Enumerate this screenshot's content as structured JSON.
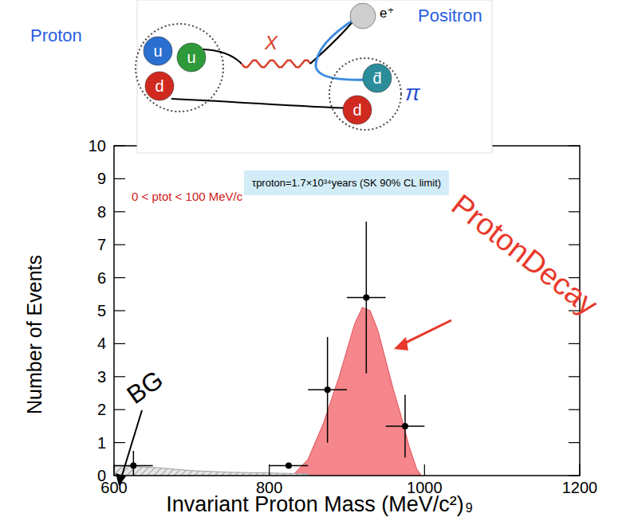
{
  "chart_data": {
    "type": "scatter",
    "x_label": "Invariant Proton Mass (MeV/c²)",
    "page_number": "9",
    "y_label": "Number of Events",
    "annotations": [
      "τproton=1.7×10³⁴years (SK 90% CL limit)",
      "0 < ptot < 100 MeV/c"
    ],
    "xlim": [
      600,
      1200
    ],
    "xticks": [
      600,
      800,
      1000,
      1200
    ],
    "ylim": [
      0,
      10
    ],
    "yticks": [
      0,
      1,
      2,
      3,
      4,
      5,
      6,
      7,
      8,
      9,
      10
    ],
    "series": [
      {
        "type": "scatter",
        "color": "#000000",
        "marker": "circle",
        "x": [
          625,
          825,
          875,
          925,
          975
        ],
        "values": [
          0.3,
          0.3,
          2.6,
          5.4,
          1.5
        ],
        "errors": [
          0.45,
          0,
          1.6,
          2.3,
          0.95
        ],
        "x_errors": [
          25,
          25,
          25,
          25,
          25
        ]
      },
      {
        "name": "ProtonDecay",
        "type": "area",
        "color": "#f5868b",
        "x": [
          830,
          850,
          870,
          880,
          890,
          900,
          910,
          920,
          930,
          940,
          950,
          960,
          970,
          980,
          990,
          996
        ],
        "values": [
          0,
          0.5,
          1.6,
          2.3,
          3.0,
          3.8,
          4.6,
          5.1,
          5.0,
          4.4,
          3.5,
          2.6,
          1.8,
          0.9,
          0.2,
          0
        ]
      },
      {
        "name": "BG",
        "type": "area",
        "color": "#a0a0a0",
        "line_style": "hatched",
        "x": [
          600,
          650,
          700,
          750,
          800,
          850
        ],
        "values": [
          0.3,
          0.25,
          0.15,
          0.1,
          0.08,
          0.05
        ]
      }
    ]
  },
  "diagram": {
    "proton_label": "Proton",
    "positron_label": "Positron",
    "boson_label": "X",
    "positron_symbol": "e⁺",
    "pion_symbol": "π",
    "proton_quarks": [
      "u",
      "u",
      "d"
    ],
    "pion_quarks": [
      "d̄",
      "d"
    ]
  }
}
